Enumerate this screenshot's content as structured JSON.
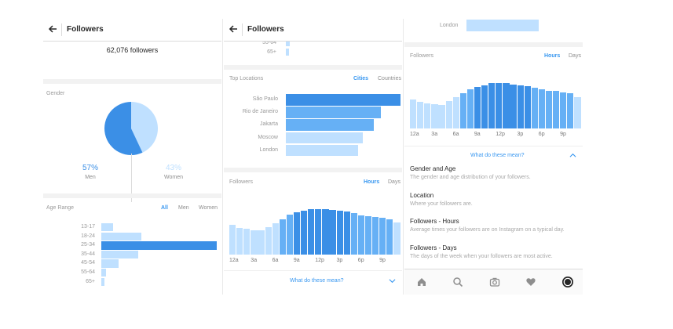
{
  "colors": {
    "accent": "#3897f0",
    "bar_dark": "#3b8fe6",
    "bar_mid": "#66b0f5",
    "bar_light": "#bfe0ff",
    "text_gray": "#8e8e8e",
    "divider": "#dbdbdb"
  },
  "panel1": {
    "title": "Followers",
    "followers_count": "62,076 followers",
    "gender_label": "Gender",
    "gender": {
      "men_pct": "57%",
      "men_label": "Men",
      "women_pct": "43%",
      "women_label": "Women",
      "men_value": 57,
      "women_value": 43
    },
    "age_label": "Age Range",
    "age_tabs": {
      "all": "All",
      "men": "Men",
      "women": "Women"
    },
    "age_ranges": [
      "13-17",
      "18-24",
      "25-34",
      "35-44",
      "45-54",
      "55-64",
      "65+"
    ]
  },
  "panel2": {
    "title": "Followers",
    "age_tail": [
      "55-64",
      "65+"
    ],
    "top_locations_label": "Top Locations",
    "location_tabs": {
      "cities": "Cities",
      "countries": "Countries"
    },
    "cities": [
      "São Paulo",
      "Rio de Janeiro",
      "Jakarta",
      "Moscow",
      "London"
    ],
    "followers_label": "Followers",
    "time_tabs": {
      "hours": "Hours",
      "days": "Days"
    },
    "hour_ticks": [
      "12a",
      "3a",
      "6a",
      "9a",
      "12p",
      "3p",
      "6p",
      "9p"
    ],
    "help_link": "What do these mean?"
  },
  "panel3": {
    "london_label": "London",
    "followers_label": "Followers",
    "time_tabs": {
      "hours": "Hours",
      "days": "Days"
    },
    "hour_ticks": [
      "12a",
      "3a",
      "6a",
      "9a",
      "12p",
      "3p",
      "6p",
      "9p"
    ],
    "help_link": "What do these mean?",
    "definitions": [
      {
        "title": "Gender and Age",
        "desc": "The gender and age distribution of your followers."
      },
      {
        "title": "Location",
        "desc": "Where your followers are."
      },
      {
        "title": "Followers - Hours",
        "desc": "Average times your followers are on Instagram on a typical day."
      },
      {
        "title": "Followers - Days",
        "desc": "The days of the week when your followers are most active."
      }
    ],
    "tabbar_icons": [
      "home-icon",
      "search-icon",
      "camera-icon",
      "heart-icon",
      "profile-icon"
    ]
  },
  "chart_data": [
    {
      "type": "bar",
      "title": "Age Range",
      "orientation": "horizontal",
      "categories": [
        "13-17",
        "18-24",
        "25-34",
        "35-44",
        "45-54",
        "55-64",
        "65+"
      ],
      "values": [
        10,
        35,
        100,
        32,
        15,
        4,
        3
      ],
      "unit": "relative share (%)"
    },
    {
      "type": "bar",
      "title": "Top Locations",
      "orientation": "horizontal",
      "categories": [
        "São Paulo",
        "Rio de Janeiro",
        "Jakarta",
        "Moscow",
        "London"
      ],
      "values": [
        100,
        83,
        77,
        67,
        63
      ],
      "unit": "relative share (%)"
    },
    {
      "type": "bar",
      "title": "Followers",
      "x": [
        "12a",
        "1a",
        "2a",
        "3a",
        "4a",
        "5a",
        "6a",
        "7a",
        "8a",
        "9a",
        "10a",
        "11a",
        "12p",
        "1p",
        "2p",
        "3p",
        "4p",
        "5p",
        "6p",
        "7p",
        "8p",
        "9p",
        "10p",
        "11p"
      ],
      "x_tick_labels": [
        "12a",
        "3a",
        "6a",
        "9a",
        "12p",
        "3p",
        "6p",
        "9p"
      ],
      "values": [
        52,
        47,
        45,
        43,
        42,
        48,
        55,
        62,
        70,
        74,
        77,
        80,
        80,
        80,
        78,
        77,
        75,
        72,
        69,
        67,
        66,
        64,
        62,
        56
      ],
      "highlight_range": [
        9,
        16
      ],
      "ylim": [
        0,
        100
      ]
    }
  ]
}
